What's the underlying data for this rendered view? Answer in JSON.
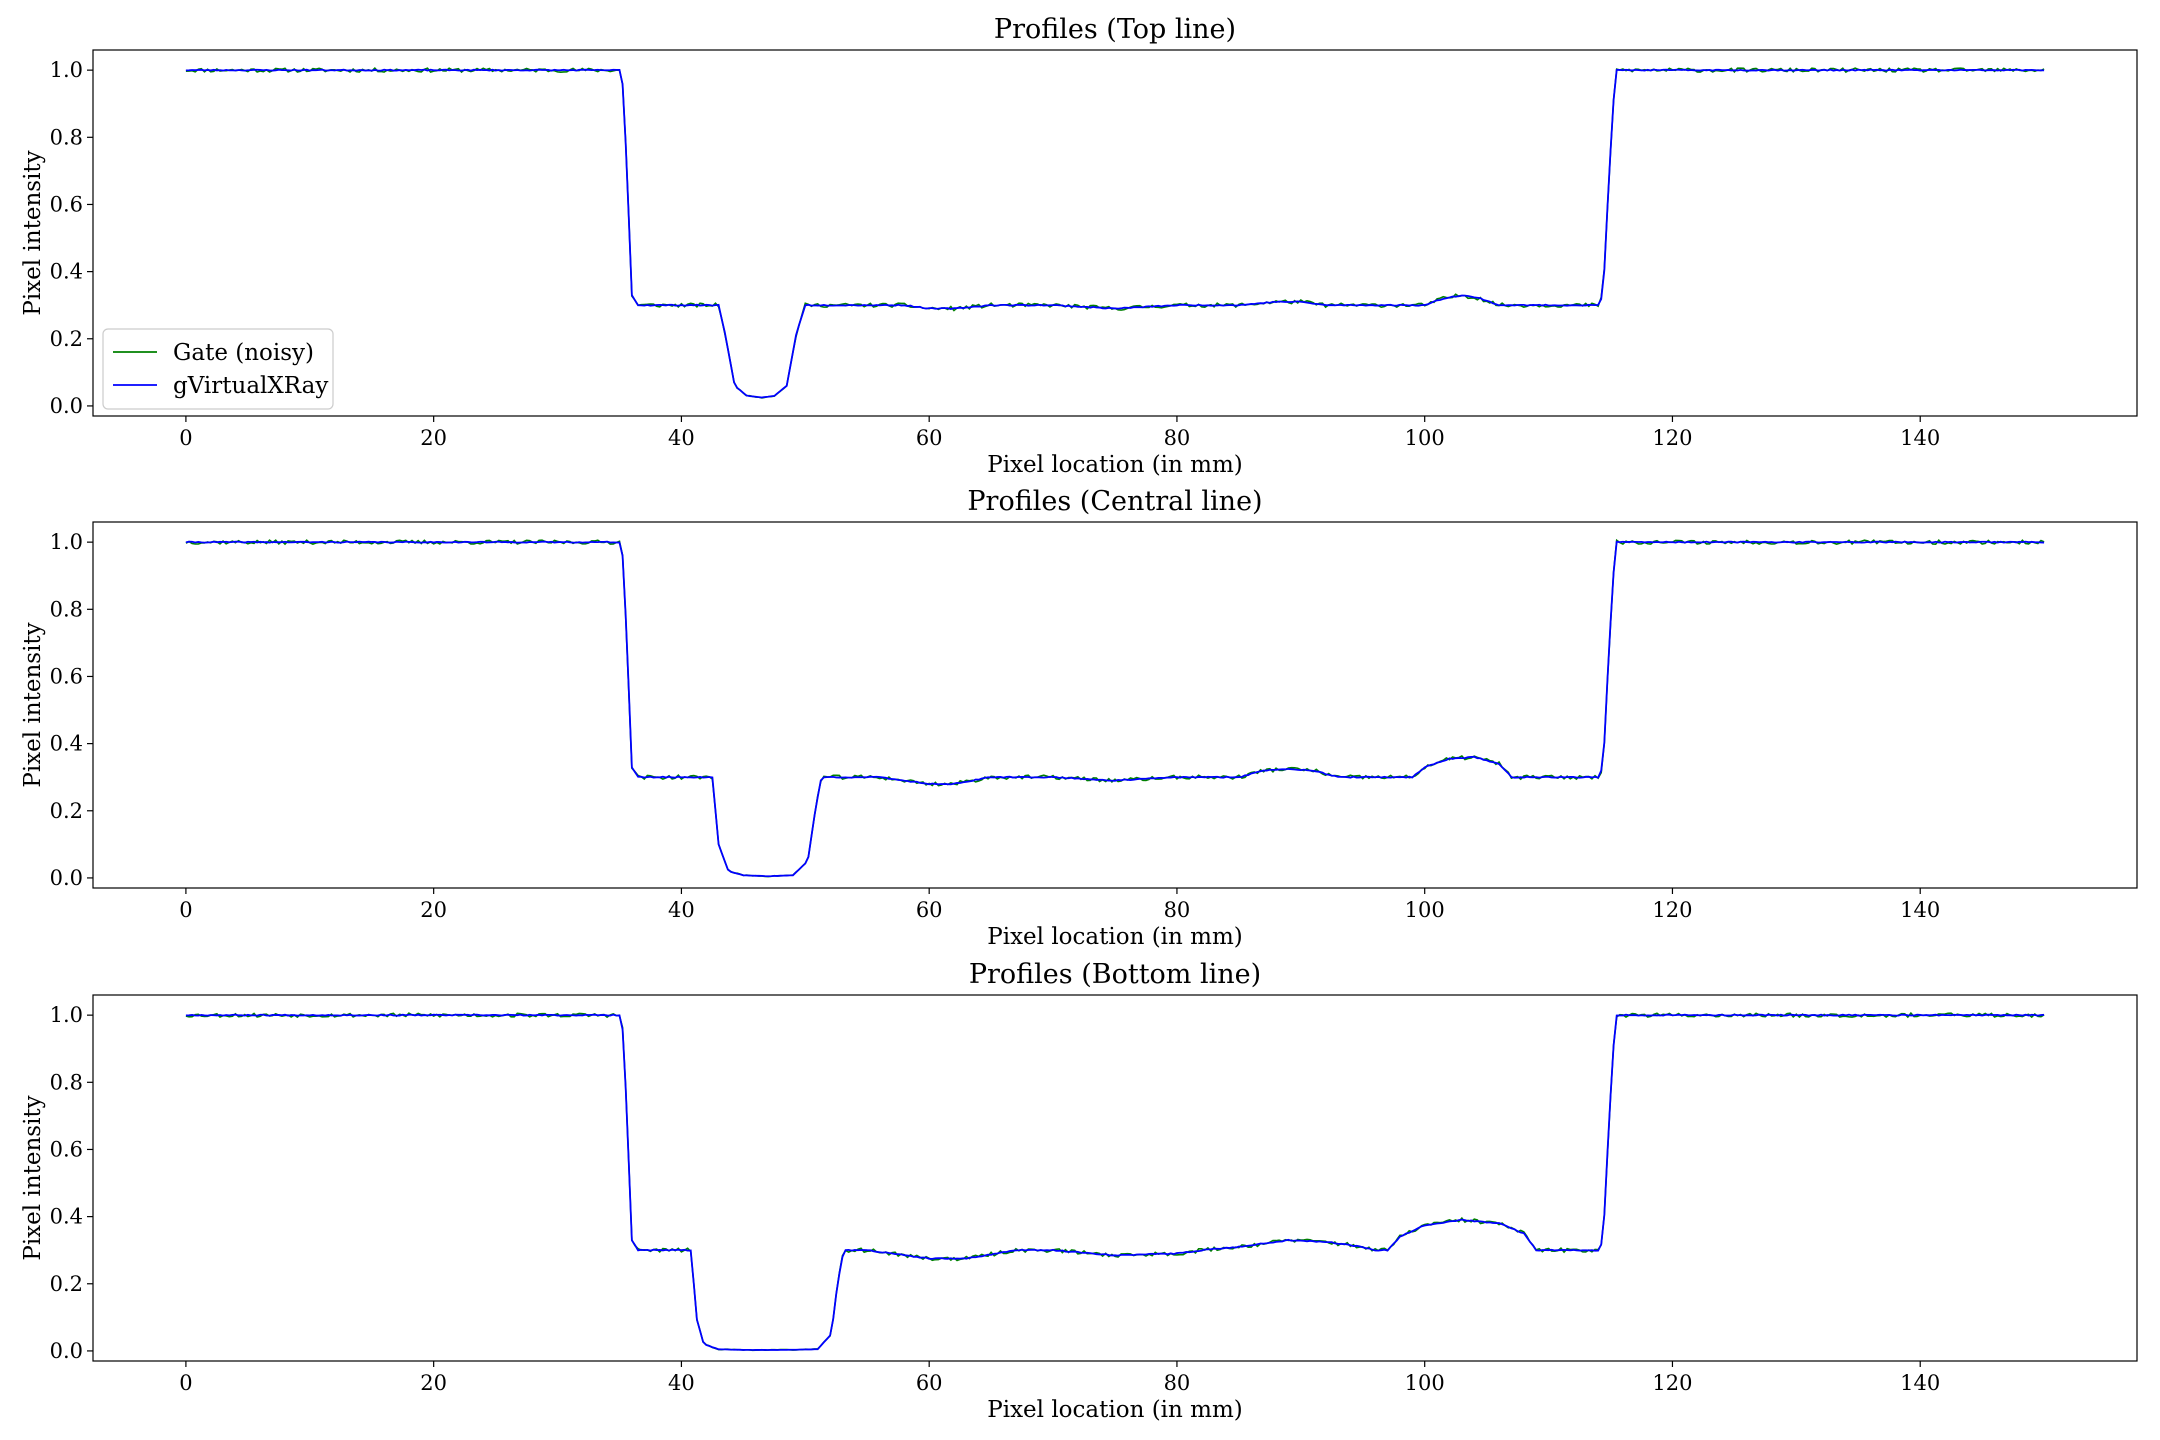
{
  "figure": {
    "legend_labels": [
      "Gate (noisy)",
      "gVirtualXRay"
    ]
  },
  "chart_data": [
    {
      "type": "line",
      "title": "Profiles (Top line)",
      "xlabel": "Pixel location (in mm)",
      "ylabel": "Pixel intensity",
      "xlim": [
        -7.5,
        157.5
      ],
      "ylim": [
        -0.03,
        1.06
      ],
      "xticks": [
        0,
        20,
        40,
        60,
        80,
        100,
        120,
        140
      ],
      "yticks": [
        0.0,
        0.2,
        0.4,
        0.6,
        0.8,
        1.0
      ],
      "xtick_labels": [
        "0",
        "20",
        "40",
        "60",
        "80",
        "100",
        "120",
        "140"
      ],
      "ytick_labels": [
        "0.0",
        "0.2",
        "0.4",
        "0.6",
        "0.8",
        "1.0"
      ],
      "grid": false,
      "legend": "lower-left",
      "series": [
        {
          "name": "Gate (noisy)",
          "color": "#008000",
          "noise": 0.006,
          "seed": 11,
          "x": [
            0,
            35,
            35.3,
            35.6,
            36.0,
            36.5,
            43,
            43.5,
            44.3,
            45.3,
            46.5,
            47.5,
            48.5,
            49.3,
            50,
            50.5,
            58,
            60,
            62,
            65,
            70,
            75,
            80,
            85,
            88,
            90,
            92,
            95,
            100,
            101.5,
            103,
            104.5,
            106,
            114,
            114.4,
            114.9,
            115.4,
            150
          ],
          "y": [
            1.0,
            1.0,
            0.95,
            0.7,
            0.33,
            0.3,
            0.3,
            0.22,
            0.06,
            0.03,
            0.025,
            0.03,
            0.06,
            0.22,
            0.3,
            0.3,
            0.3,
            0.29,
            0.29,
            0.3,
            0.3,
            0.29,
            0.3,
            0.3,
            0.31,
            0.31,
            0.3,
            0.3,
            0.3,
            0.32,
            0.33,
            0.32,
            0.3,
            0.3,
            0.33,
            0.7,
            1.0,
            1.0
          ]
        },
        {
          "name": "gVirtualXRay",
          "color": "#0000ff",
          "noise": 0.0015,
          "seed": 23,
          "x": [
            0,
            35,
            35.3,
            35.6,
            36.0,
            36.5,
            43,
            43.5,
            44.3,
            45.3,
            46.5,
            47.5,
            48.5,
            49.3,
            50,
            50.5,
            58,
            60,
            62,
            65,
            70,
            75,
            80,
            85,
            88,
            90,
            92,
            95,
            100,
            101.5,
            103,
            104.5,
            106,
            114,
            114.4,
            114.9,
            115.4,
            150
          ],
          "y": [
            1.0,
            1.0,
            0.95,
            0.7,
            0.33,
            0.3,
            0.3,
            0.22,
            0.06,
            0.03,
            0.025,
            0.03,
            0.06,
            0.22,
            0.3,
            0.3,
            0.3,
            0.29,
            0.29,
            0.3,
            0.3,
            0.29,
            0.3,
            0.3,
            0.31,
            0.31,
            0.3,
            0.3,
            0.3,
            0.32,
            0.33,
            0.32,
            0.3,
            0.3,
            0.33,
            0.7,
            1.0,
            1.0
          ]
        }
      ]
    },
    {
      "type": "line",
      "title": "Profiles (Central line)",
      "xlabel": "Pixel location (in mm)",
      "ylabel": "Pixel intensity",
      "xlim": [
        -7.5,
        157.5
      ],
      "ylim": [
        -0.03,
        1.06
      ],
      "xticks": [
        0,
        20,
        40,
        60,
        80,
        100,
        120,
        140
      ],
      "yticks": [
        0.0,
        0.2,
        0.4,
        0.6,
        0.8,
        1.0
      ],
      "xtick_labels": [
        "0",
        "20",
        "40",
        "60",
        "80",
        "100",
        "120",
        "140"
      ],
      "ytick_labels": [
        "0.0",
        "0.2",
        "0.4",
        "0.6",
        "0.8",
        "1.0"
      ],
      "grid": false,
      "legend": "none",
      "series": [
        {
          "name": "Gate (noisy)",
          "color": "#008000",
          "noise": 0.006,
          "seed": 37,
          "x": [
            0,
            35,
            35.3,
            35.6,
            36.0,
            36.5,
            42.5,
            43.0,
            43.8,
            45,
            47,
            49,
            50.2,
            50.8,
            51.3,
            56,
            58,
            60,
            62,
            65,
            70,
            75,
            80,
            85,
            87,
            89,
            91,
            93,
            95,
            99,
            100,
            102,
            104,
            106,
            107,
            114,
            114.4,
            114.9,
            115.4,
            150
          ],
          "y": [
            1.0,
            1.0,
            0.95,
            0.7,
            0.33,
            0.3,
            0.3,
            0.1,
            0.02,
            0.008,
            0.005,
            0.008,
            0.05,
            0.2,
            0.3,
            0.3,
            0.29,
            0.28,
            0.28,
            0.3,
            0.3,
            0.29,
            0.3,
            0.3,
            0.32,
            0.325,
            0.32,
            0.3,
            0.3,
            0.3,
            0.33,
            0.355,
            0.36,
            0.34,
            0.3,
            0.3,
            0.33,
            0.7,
            1.0,
            1.0
          ]
        },
        {
          "name": "gVirtualXRay",
          "color": "#0000ff",
          "noise": 0.0015,
          "seed": 41,
          "x": [
            0,
            35,
            35.3,
            35.6,
            36.0,
            36.5,
            42.5,
            43.0,
            43.8,
            45,
            47,
            49,
            50.2,
            50.8,
            51.3,
            56,
            58,
            60,
            62,
            65,
            70,
            75,
            80,
            85,
            87,
            89,
            91,
            93,
            95,
            99,
            100,
            102,
            104,
            106,
            107,
            114,
            114.4,
            114.9,
            115.4,
            150
          ],
          "y": [
            1.0,
            1.0,
            0.95,
            0.7,
            0.33,
            0.3,
            0.3,
            0.1,
            0.02,
            0.008,
            0.005,
            0.008,
            0.05,
            0.2,
            0.3,
            0.3,
            0.29,
            0.28,
            0.28,
            0.3,
            0.3,
            0.29,
            0.3,
            0.3,
            0.32,
            0.325,
            0.32,
            0.3,
            0.3,
            0.3,
            0.33,
            0.355,
            0.36,
            0.34,
            0.3,
            0.3,
            0.33,
            0.7,
            1.0,
            1.0
          ]
        }
      ]
    },
    {
      "type": "line",
      "title": "Profiles (Bottom line)",
      "xlabel": "Pixel location (in mm)",
      "ylabel": "Pixel intensity",
      "xlim": [
        -7.5,
        157.5
      ],
      "ylim": [
        -0.03,
        1.06
      ],
      "xticks": [
        0,
        20,
        40,
        60,
        80,
        100,
        120,
        140
      ],
      "yticks": [
        0.0,
        0.2,
        0.4,
        0.6,
        0.8,
        1.0
      ],
      "xtick_labels": [
        "0",
        "20",
        "40",
        "60",
        "80",
        "100",
        "120",
        "140"
      ],
      "ytick_labels": [
        "0.0",
        "0.2",
        "0.4",
        "0.6",
        "0.8",
        "1.0"
      ],
      "grid": false,
      "legend": "none",
      "series": [
        {
          "name": "Gate (noisy)",
          "color": "#008000",
          "noise": 0.006,
          "seed": 53,
          "x": [
            0,
            35,
            35.3,
            35.6,
            36.0,
            36.5,
            40.8,
            41.2,
            41.8,
            43,
            45,
            48,
            51,
            52.1,
            52.6,
            53.1,
            55,
            57,
            60,
            63,
            67,
            70,
            75,
            80,
            82,
            85,
            89,
            92,
            95,
            96,
            97,
            98,
            100,
            103,
            106,
            108,
            109,
            114,
            114.4,
            114.9,
            115.4,
            150
          ],
          "y": [
            1.0,
            1.0,
            0.95,
            0.7,
            0.33,
            0.3,
            0.3,
            0.1,
            0.02,
            0.005,
            0.003,
            0.003,
            0.005,
            0.05,
            0.2,
            0.3,
            0.3,
            0.29,
            0.275,
            0.275,
            0.3,
            0.3,
            0.285,
            0.29,
            0.3,
            0.31,
            0.33,
            0.325,
            0.31,
            0.3,
            0.3,
            0.34,
            0.375,
            0.39,
            0.38,
            0.35,
            0.3,
            0.3,
            0.33,
            0.7,
            1.0,
            1.0
          ]
        },
        {
          "name": "gVirtualXRay",
          "color": "#0000ff",
          "noise": 0.0015,
          "seed": 67,
          "x": [
            0,
            35,
            35.3,
            35.6,
            36.0,
            36.5,
            40.8,
            41.2,
            41.8,
            43,
            45,
            48,
            51,
            52.1,
            52.6,
            53.1,
            55,
            57,
            60,
            63,
            67,
            70,
            75,
            80,
            82,
            85,
            89,
            92,
            95,
            96,
            97,
            98,
            100,
            103,
            106,
            108,
            109,
            114,
            114.4,
            114.9,
            115.4,
            150
          ],
          "y": [
            1.0,
            1.0,
            0.95,
            0.7,
            0.33,
            0.3,
            0.3,
            0.1,
            0.02,
            0.005,
            0.003,
            0.003,
            0.005,
            0.05,
            0.2,
            0.3,
            0.3,
            0.29,
            0.275,
            0.275,
            0.3,
            0.3,
            0.285,
            0.29,
            0.3,
            0.31,
            0.33,
            0.325,
            0.31,
            0.3,
            0.3,
            0.34,
            0.375,
            0.39,
            0.38,
            0.35,
            0.3,
            0.3,
            0.33,
            0.7,
            1.0,
            1.0
          ]
        }
      ]
    }
  ]
}
